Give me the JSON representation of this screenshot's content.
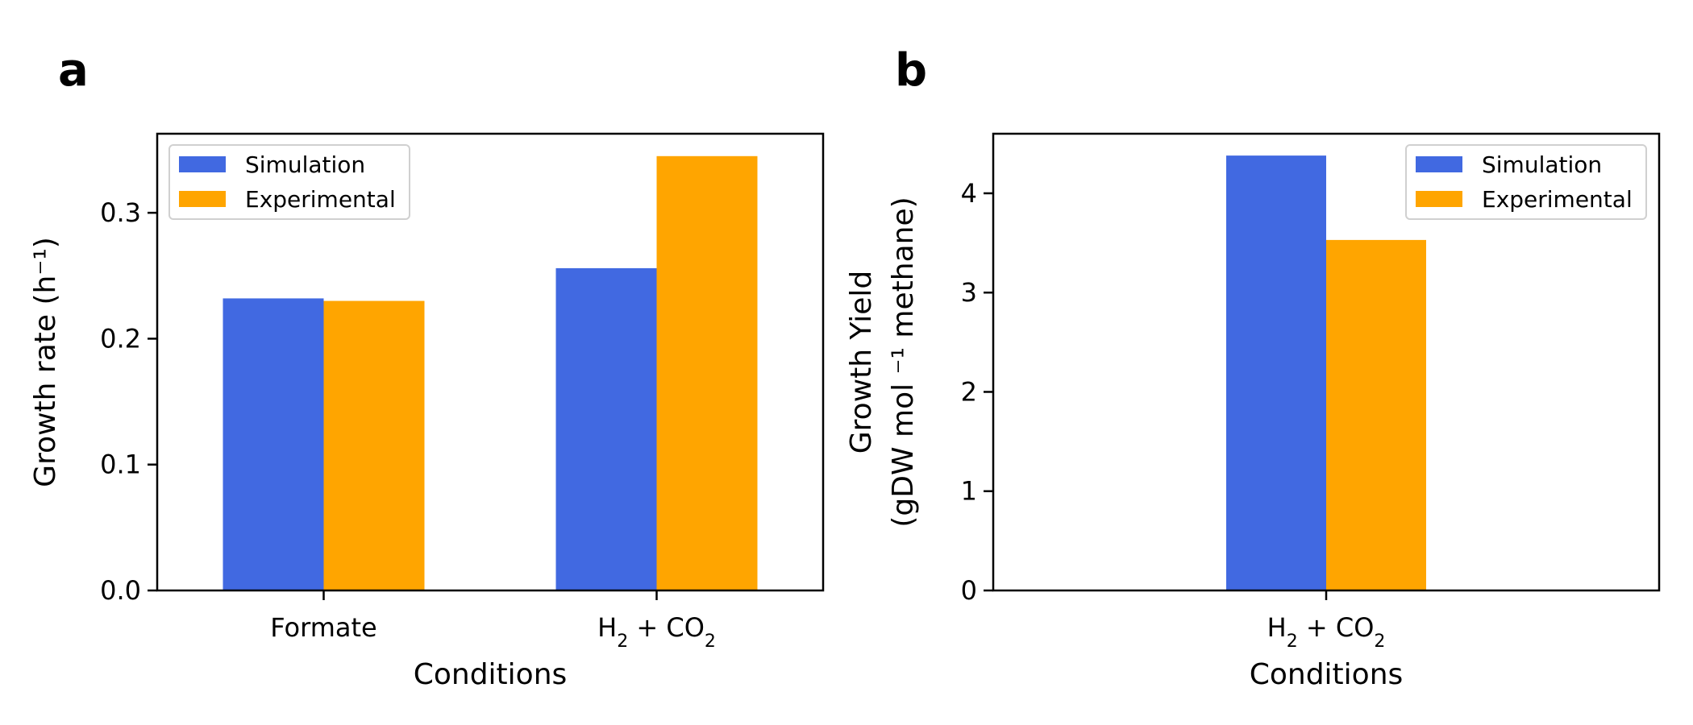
{
  "chart_data": [
    {
      "type": "bar",
      "panel_label": "a",
      "categories": [
        "Formate",
        "H₂ + CO₂"
      ],
      "series": [
        {
          "name": "Simulation",
          "color": "#4169e1",
          "values": [
            0.232,
            0.256
          ]
        },
        {
          "name": "Experimental",
          "color": "#ffa500",
          "values": [
            0.23,
            0.345
          ]
        }
      ],
      "xlabel": "Conditions",
      "ylabel": "Growth rate (h⁻¹)",
      "ylim": [
        0,
        0.3628
      ],
      "yticks": [
        "0.0",
        "0.1",
        "0.2",
        "0.3"
      ],
      "ytick_values": [
        0,
        0.1,
        0.2,
        0.3
      ],
      "legend_position": "upper-left",
      "grid": false
    },
    {
      "type": "bar",
      "panel_label": "b",
      "categories": [
        "H₂ + CO₂"
      ],
      "series": [
        {
          "name": "Simulation",
          "color": "#4169e1",
          "values": [
            4.38
          ]
        },
        {
          "name": "Experimental",
          "color": "#ffa500",
          "values": [
            3.53
          ]
        }
      ],
      "xlabel": "Conditions",
      "ylabel_line1": "Growth Yield",
      "ylabel_line2": "(gDW mol ⁻¹ methane)",
      "ylim": [
        0,
        4.6
      ],
      "yticks": [
        "0",
        "1",
        "2",
        "3",
        "4"
      ],
      "ytick_values": [
        0,
        1,
        2,
        3,
        4
      ],
      "legend_position": "upper-right",
      "grid": false
    }
  ]
}
